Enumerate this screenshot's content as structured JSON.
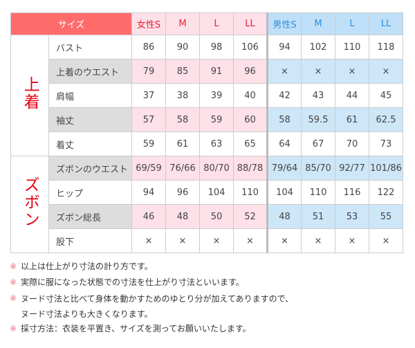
{
  "header": {
    "label": "サイズ",
    "women": [
      "女性S",
      "M",
      "L",
      "LL"
    ],
    "men": [
      "男性S",
      "M",
      "L",
      "LL"
    ]
  },
  "groups": [
    {
      "label": "上着",
      "rows": [
        {
          "item": "バスト",
          "women": [
            "86",
            "90",
            "98",
            "106"
          ],
          "men": [
            "94",
            "102",
            "110",
            "118"
          ]
        },
        {
          "item": "上着のウエスト",
          "women": [
            "79",
            "85",
            "91",
            "96"
          ],
          "men": [
            "×",
            "×",
            "×",
            "×"
          ]
        },
        {
          "item": "肩幅",
          "women": [
            "37",
            "38",
            "39",
            "40"
          ],
          "men": [
            "42",
            "43",
            "44",
            "45"
          ]
        },
        {
          "item": "袖丈",
          "women": [
            "57",
            "58",
            "59",
            "60"
          ],
          "men": [
            "58",
            "59.5",
            "61",
            "62.5"
          ]
        },
        {
          "item": "着丈",
          "women": [
            "59",
            "61",
            "63",
            "65"
          ],
          "men": [
            "64",
            "67",
            "70",
            "73"
          ]
        }
      ]
    },
    {
      "label": "ズボン",
      "rows": [
        {
          "item": "ズボンのウエスト",
          "women": [
            "69/59",
            "76/66",
            "80/70",
            "88/78"
          ],
          "men": [
            "79/64",
            "85/70",
            "92/77",
            "101/86"
          ]
        },
        {
          "item": "ヒップ",
          "women": [
            "94",
            "96",
            "104",
            "110"
          ],
          "men": [
            "104",
            "110",
            "116",
            "122"
          ]
        },
        {
          "item": "ズボン総長",
          "women": [
            "46",
            "48",
            "50",
            "52"
          ],
          "men": [
            "48",
            "51",
            "53",
            "55"
          ]
        },
        {
          "item": "股下",
          "women": [
            "×",
            "×",
            "×",
            "×"
          ],
          "men": [
            "×",
            "×",
            "×",
            "×"
          ]
        }
      ]
    }
  ],
  "notes": [
    {
      "mark": "※",
      "lines": [
        "以上は仕上がり寸法の計り方です。"
      ]
    },
    {
      "mark": "※",
      "lines": [
        "実際に服になった状態での寸法を仕上がり寸法といいます。"
      ]
    },
    {
      "mark": "※",
      "lines": [
        "ヌード寸法と比べて身体を動かすためのゆとり分が加えてありますので、",
        "ヌード寸法よりも大きくなります。"
      ]
    },
    {
      "mark": "※",
      "lines": [
        "採寸方法：衣装を平置き、サイズを測ってお願いいたします。"
      ]
    }
  ]
}
